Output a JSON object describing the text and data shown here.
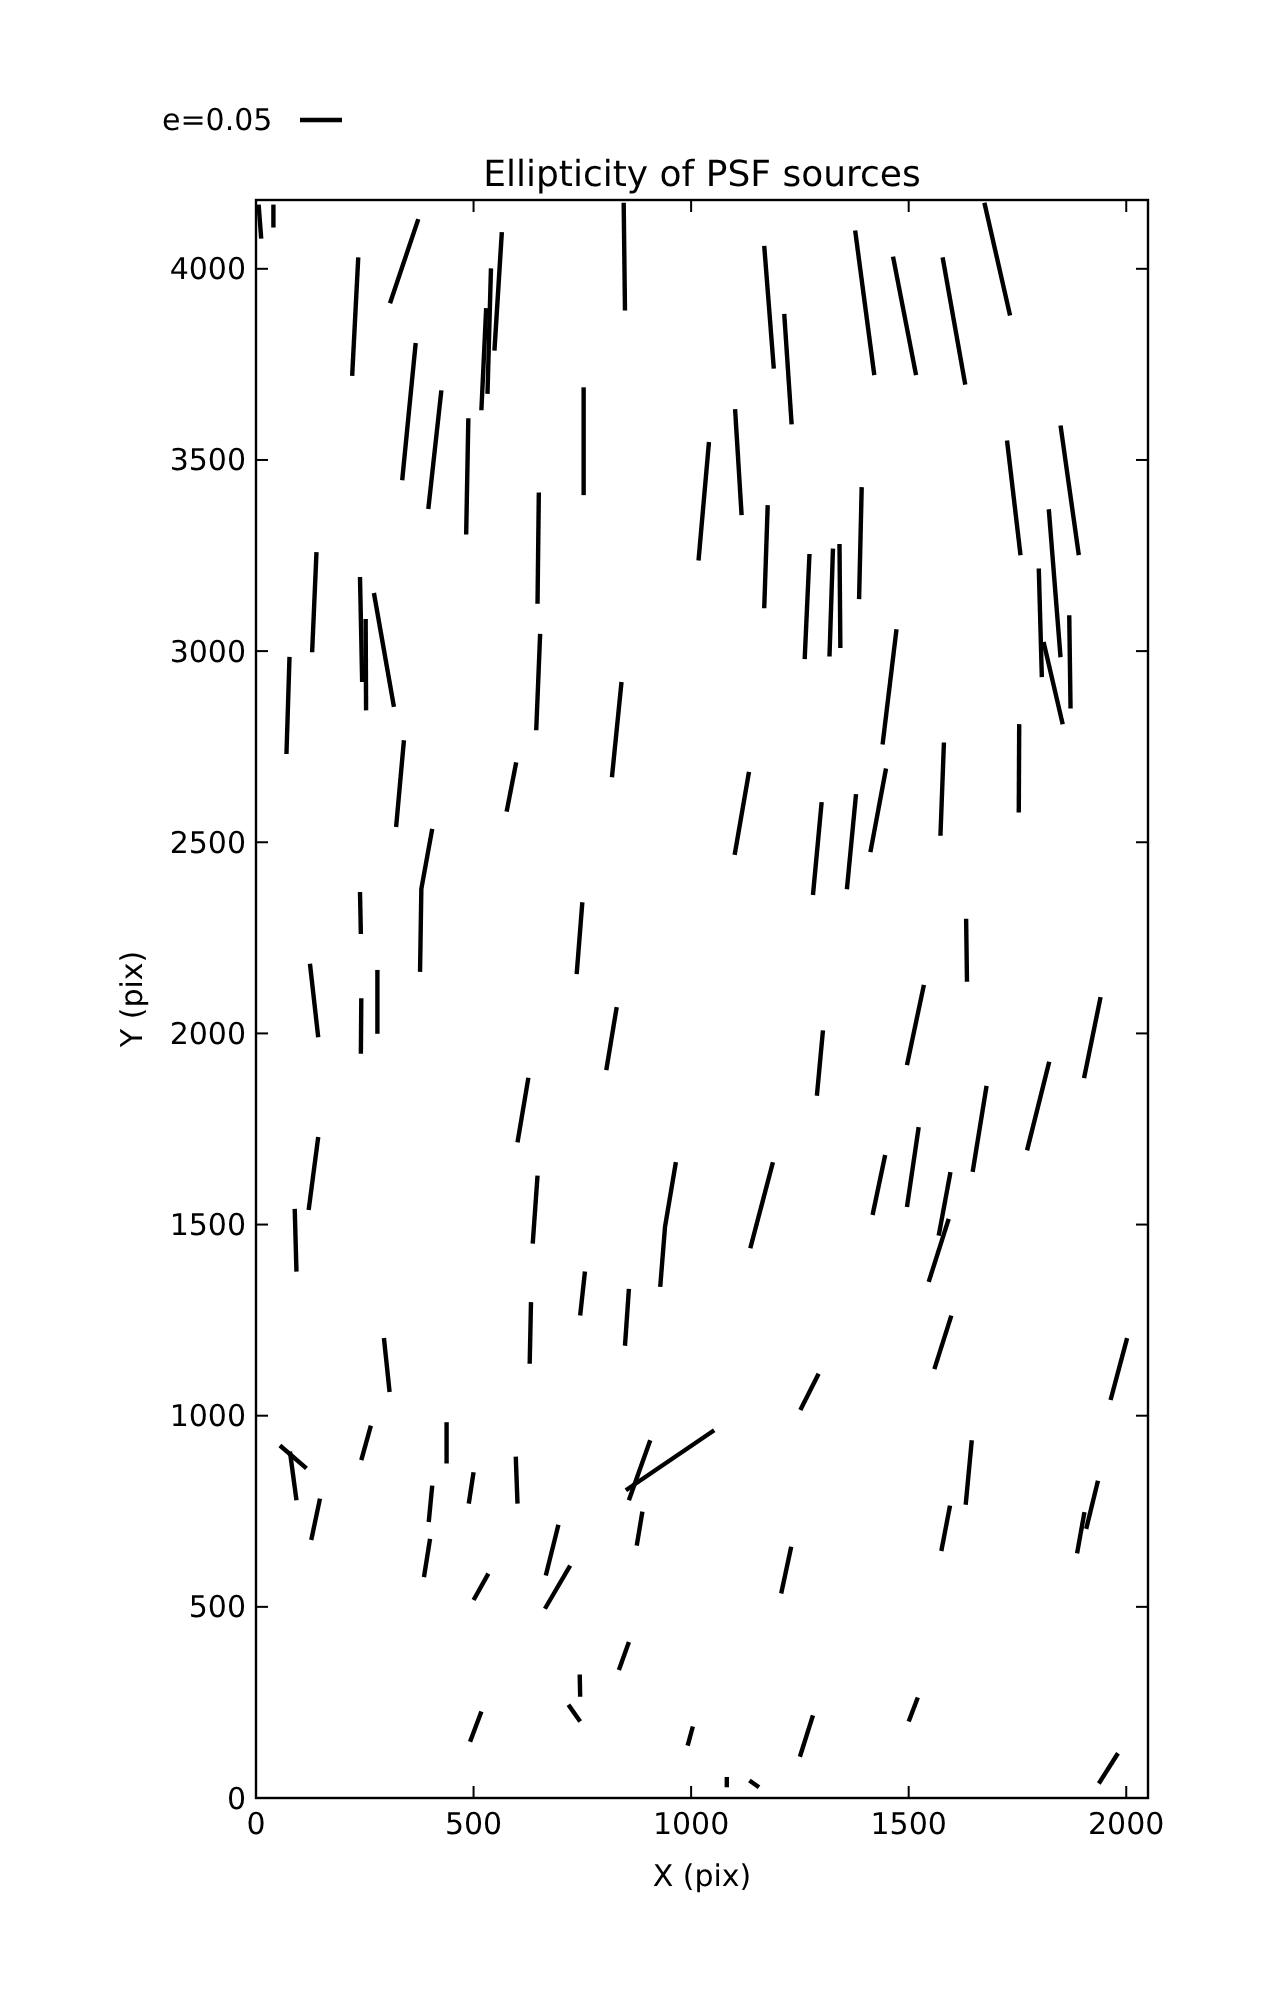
{
  "chart_data": {
    "type": "line",
    "title": "Ellipticity of PSF sources",
    "xlabel": "X (pix)",
    "ylabel": "Y (pix)",
    "annotations": [
      "e=0.05"
    ],
    "xlim": [
      0,
      2050
    ],
    "ylim": [
      0,
      4180
    ],
    "xticks": [
      0,
      500,
      1000,
      1500,
      2000
    ],
    "yticks": [
      0,
      500,
      1000,
      1500,
      2000,
      2500,
      3000,
      3500,
      4000
    ],
    "grid": false,
    "series": [
      {
        "x": [
          6,
          12
        ],
        "values": [
          4168,
          4079
        ],
        "color": "#000000"
      },
      {
        "x": [
          40,
          40
        ],
        "values": [
          4168,
          4108
        ],
        "color": "#000000"
      },
      {
        "x": [
          235,
          221
        ],
        "values": [
          4030,
          3720
        ],
        "color": "#000000"
      },
      {
        "x": [
          373,
          308
        ],
        "values": [
          4130,
          3910
        ],
        "color": "#000000"
      },
      {
        "x": [
          845,
          848
        ],
        "values": [
          4173,
          3891
        ],
        "color": "#000000"
      },
      {
        "x": [
          565,
          548
        ],
        "values": [
          4096,
          3786
        ],
        "color": "#000000"
      },
      {
        "x": [
          540,
          532
        ],
        "values": [
          4001,
          3673
        ],
        "color": "#000000"
      },
      {
        "x": [
          529,
          518
        ],
        "values": [
          3897,
          3630
        ],
        "color": "#000000"
      },
      {
        "x": [
          367,
          336
        ],
        "values": [
          3806,
          3447
        ],
        "color": "#000000"
      },
      {
        "x": [
          426,
          396
        ],
        "values": [
          3682,
          3372
        ],
        "color": "#000000"
      },
      {
        "x": [
          488,
          483
        ],
        "values": [
          3609,
          3305
        ],
        "color": "#000000"
      },
      {
        "x": [
          753,
          753
        ],
        "values": [
          3690,
          3408
        ],
        "color": "#000000"
      },
      {
        "x": [
          1041,
          1017
        ],
        "values": [
          3547,
          3237
        ],
        "color": "#000000"
      },
      {
        "x": [
          139,
          129
        ],
        "values": [
          3259,
          2997
        ],
        "color": "#000000"
      },
      {
        "x": [
          239,
          244
        ],
        "values": [
          3194,
          2919
        ],
        "color": "#000000"
      },
      {
        "x": [
          252,
          253
        ],
        "values": [
          3084,
          2845
        ],
        "color": "#000000"
      },
      {
        "x": [
          271,
          317
        ],
        "values": [
          3152,
          2854
        ],
        "color": "#000000"
      },
      {
        "x": [
          650,
          647
        ],
        "values": [
          3415,
          3124
        ],
        "color": "#000000"
      },
      {
        "x": [
          653,
          644
        ],
        "values": [
          3045,
          2793
        ],
        "color": "#000000"
      },
      {
        "x": [
          77,
          70
        ],
        "values": [
          2985,
          2731
        ],
        "color": "#000000"
      },
      {
        "x": [
          840,
          818
        ],
        "values": [
          2919,
          2670
        ],
        "color": "#000000"
      },
      {
        "x": [
          1674,
          1733
        ],
        "values": [
          4173,
          3878
        ],
        "color": "#000000"
      },
      {
        "x": [
          1168,
          1190
        ],
        "values": [
          4060,
          3739
        ],
        "color": "#000000"
      },
      {
        "x": [
          1214,
          1231
        ],
        "values": [
          3882,
          3593
        ],
        "color": "#000000"
      },
      {
        "x": [
          1377,
          1421
        ],
        "values": [
          4100,
          3722
        ],
        "color": "#000000"
      },
      {
        "x": [
          1464,
          1517
        ],
        "values": [
          4032,
          3722
        ],
        "color": "#000000"
      },
      {
        "x": [
          1578,
          1630
        ],
        "values": [
          4030,
          3697
        ],
        "color": "#000000"
      },
      {
        "x": [
          1101,
          1116
        ],
        "values": [
          3633,
          3356
        ],
        "color": "#000000"
      },
      {
        "x": [
          1176,
          1168
        ],
        "values": [
          3382,
          3112
        ],
        "color": "#000000"
      },
      {
        "x": [
          1272,
          1261
        ],
        "values": [
          3254,
          2979
        ],
        "color": "#000000"
      },
      {
        "x": [
          1326,
          1318
        ],
        "values": [
          3268,
          2986
        ],
        "color": "#000000"
      },
      {
        "x": [
          1341,
          1343
        ],
        "values": [
          3280,
          3008
        ],
        "color": "#000000"
      },
      {
        "x": [
          1392,
          1386
        ],
        "values": [
          3429,
          3136
        ],
        "color": "#000000"
      },
      {
        "x": [
          1726,
          1757
        ],
        "values": [
          3551,
          3251
        ],
        "color": "#000000"
      },
      {
        "x": [
          1849,
          1891
        ],
        "values": [
          3590,
          3251
        ],
        "color": "#000000"
      },
      {
        "x": [
          1822,
          1849
        ],
        "values": [
          3371,
          2984
        ],
        "color": "#000000"
      },
      {
        "x": [
          1799,
          1806
        ],
        "values": [
          3216,
          2932
        ],
        "color": "#000000"
      },
      {
        "x": [
          1869,
          1872
        ],
        "values": [
          3094,
          2850
        ],
        "color": "#000000"
      },
      {
        "x": [
          1810,
          1854
        ],
        "values": [
          3024,
          2809
        ],
        "color": "#000000"
      },
      {
        "x": [
          1472,
          1440
        ],
        "values": [
          3057,
          2756
        ],
        "color": "#000000"
      },
      {
        "x": [
          1754,
          1753
        ],
        "values": [
          2809,
          2578
        ],
        "color": "#000000"
      },
      {
        "x": [
          340,
          322
        ],
        "values": [
          2767,
          2540
        ],
        "color": "#000000"
      },
      {
        "x": [
          598,
          576
        ],
        "values": [
          2709,
          2580
        ],
        "color": "#000000"
      },
      {
        "x": [
          405,
          380,
          377
        ],
        "values": [
          2535,
          2378,
          2161
        ],
        "color": "#000000"
      },
      {
        "x": [
          239,
          241
        ],
        "values": [
          2370,
          2260
        ],
        "color": "#000000"
      },
      {
        "x": [
          750,
          737
        ],
        "values": [
          2343,
          2155
        ],
        "color": "#000000"
      },
      {
        "x": [
          124,
          143
        ],
        "values": [
          2182,
          1990
        ],
        "color": "#000000"
      },
      {
        "x": [
          242,
          241
        ],
        "values": [
          2092,
          1947
        ],
        "color": "#000000"
      },
      {
        "x": [
          279,
          279
        ],
        "values": [
          2166,
          1999
        ],
        "color": "#000000"
      },
      {
        "x": [
          829,
          805
        ],
        "values": [
          2069,
          1904
        ],
        "color": "#000000"
      },
      {
        "x": [
          626,
          601
        ],
        "values": [
          1884,
          1715
        ],
        "color": "#000000"
      },
      {
        "x": [
          143,
          121
        ],
        "values": [
          1729,
          1538
        ],
        "color": "#000000"
      },
      {
        "x": [
          89,
          93
        ],
        "values": [
          1541,
          1377
        ],
        "color": "#000000"
      },
      {
        "x": [
          647,
          636
        ],
        "values": [
          1628,
          1450
        ],
        "color": "#000000"
      },
      {
        "x": [
          965,
          940,
          929
        ],
        "values": [
          1663,
          1494,
          1337
        ],
        "color": "#000000"
      },
      {
        "x": [
          756,
          745
        ],
        "values": [
          1377,
          1262
        ],
        "color": "#000000"
      },
      {
        "x": [
          1133,
          1100
        ],
        "values": [
          2684,
          2467
        ],
        "color": "#000000"
      },
      {
        "x": [
          1300,
          1280
        ],
        "values": [
          2605,
          2362
        ],
        "color": "#000000"
      },
      {
        "x": [
          1379,
          1358
        ],
        "values": [
          2626,
          2377
        ],
        "color": "#000000"
      },
      {
        "x": [
          1448,
          1412
        ],
        "values": [
          2693,
          2474
        ],
        "color": "#000000"
      },
      {
        "x": [
          1581,
          1573
        ],
        "values": [
          2761,
          2517
        ],
        "color": "#000000"
      },
      {
        "x": [
          1632,
          1634
        ],
        "values": [
          2300,
          2135
        ],
        "color": "#000000"
      },
      {
        "x": [
          1535,
          1496
        ],
        "values": [
          2127,
          1917
        ],
        "color": "#000000"
      },
      {
        "x": [
          1941,
          1903
        ],
        "values": [
          2095,
          1883
        ],
        "color": "#000000"
      },
      {
        "x": [
          1303,
          1289
        ],
        "values": [
          2008,
          1837
        ],
        "color": "#000000"
      },
      {
        "x": [
          1679,
          1647
        ],
        "values": [
          1863,
          1638
        ],
        "color": "#000000"
      },
      {
        "x": [
          1823,
          1772
        ],
        "values": [
          1926,
          1694
        ],
        "color": "#000000"
      },
      {
        "x": [
          1188,
          1136
        ],
        "values": [
          1663,
          1438
        ],
        "color": "#000000"
      },
      {
        "x": [
          1446,
          1417
        ],
        "values": [
          1682,
          1525
        ],
        "color": "#000000"
      },
      {
        "x": [
          1523,
          1496
        ],
        "values": [
          1755,
          1546
        ],
        "color": "#000000"
      },
      {
        "x": [
          1596,
          1569
        ],
        "values": [
          1637,
          1471
        ],
        "color": "#000000"
      },
      {
        "x": [
          1592,
          1546
        ],
        "values": [
          1515,
          1350
        ],
        "color": "#000000"
      },
      {
        "x": [
          632,
          629
        ],
        "values": [
          1297,
          1136
        ],
        "color": "#000000"
      },
      {
        "x": [
          857,
          848
        ],
        "values": [
          1332,
          1183
        ],
        "color": "#000000"
      },
      {
        "x": [
          294,
          307
        ],
        "values": [
          1203,
          1062
        ],
        "color": "#000000"
      },
      {
        "x": [
          264,
          242
        ],
        "values": [
          974,
          884
        ],
        "color": "#000000"
      },
      {
        "x": [
          438,
          438
        ],
        "values": [
          983,
          875
        ],
        "color": "#000000"
      },
      {
        "x": [
          55,
          116
        ],
        "values": [
          922,
          862
        ],
        "color": "#000000"
      },
      {
        "x": [
          78,
          93
        ],
        "values": [
          906,
          779
        ],
        "color": "#000000"
      },
      {
        "x": [
          147,
          127
        ],
        "values": [
          783,
          675
        ],
        "color": "#000000"
      },
      {
        "x": [
          405,
          397
        ],
        "values": [
          817,
          722
        ],
        "color": "#000000"
      },
      {
        "x": [
          400,
          386
        ],
        "values": [
          678,
          578
        ],
        "color": "#000000"
      },
      {
        "x": [
          500,
          489
        ],
        "values": [
          852,
          770
        ],
        "color": "#000000"
      },
      {
        "x": [
          597,
          601
        ],
        "values": [
          893,
          770
        ],
        "color": "#000000"
      },
      {
        "x": [
          695,
          666
        ],
        "values": [
          715,
          582
        ],
        "color": "#000000"
      },
      {
        "x": [
          722,
          664
        ],
        "values": [
          608,
          495
        ],
        "color": "#000000"
      },
      {
        "x": [
          534,
          500
        ],
        "values": [
          587,
          518
        ],
        "color": "#000000"
      },
      {
        "x": [
          906,
          857
        ],
        "values": [
          936,
          779
        ],
        "color": "#000000"
      },
      {
        "x": [
          1053,
          850
        ],
        "values": [
          962,
          805
        ],
        "color": "#000000"
      },
      {
        "x": [
          888,
          875
        ],
        "values": [
          749,
          660
        ],
        "color": "#000000"
      },
      {
        "x": [
          857,
          834
        ],
        "values": [
          408,
          335
        ],
        "color": "#000000"
      },
      {
        "x": [
          744,
          745
        ],
        "values": [
          323,
          265
        ],
        "color": "#000000"
      },
      {
        "x": [
          718,
          745
        ],
        "values": [
          244,
          200
        ],
        "color": "#000000"
      },
      {
        "x": [
          518,
          492
        ],
        "values": [
          226,
          147
        ],
        "color": "#000000"
      },
      {
        "x": [
          1004,
          992
        ],
        "values": [
          187,
          137
        ],
        "color": "#000000"
      },
      {
        "x": [
          1598,
          1559
        ],
        "values": [
          1262,
          1122
        ],
        "color": "#000000"
      },
      {
        "x": [
          2002,
          1964
        ],
        "values": [
          1203,
          1041
        ],
        "color": "#000000"
      },
      {
        "x": [
          1293,
          1251
        ],
        "values": [
          1110,
          1015
        ],
        "color": "#000000"
      },
      {
        "x": [
          1645,
          1631
        ],
        "values": [
          936,
          767
        ],
        "color": "#000000"
      },
      {
        "x": [
          1595,
          1575
        ],
        "values": [
          765,
          646
        ],
        "color": "#000000"
      },
      {
        "x": [
          1935,
          1908
        ],
        "values": [
          830,
          704
        ],
        "color": "#000000"
      },
      {
        "x": [
          1904,
          1887
        ],
        "values": [
          748,
          640
        ],
        "color": "#000000"
      },
      {
        "x": [
          1230,
          1207
        ],
        "values": [
          657,
          535
        ],
        "color": "#000000"
      },
      {
        "x": [
          1521,
          1500
        ],
        "values": [
          263,
          200
        ],
        "color": "#000000"
      },
      {
        "x": [
          1280,
          1250
        ],
        "values": [
          216,
          108
        ],
        "color": "#000000"
      },
      {
        "x": [
          1981,
          1937
        ],
        "values": [
          117,
          38
        ],
        "color": "#000000"
      },
      {
        "x": [
          1082,
          1082
        ],
        "values": [
          55,
          28
        ],
        "color": "#000000"
      },
      {
        "x": [
          1134,
          1156
        ],
        "values": [
          46,
          28
        ],
        "color": "#000000"
      }
    ]
  }
}
